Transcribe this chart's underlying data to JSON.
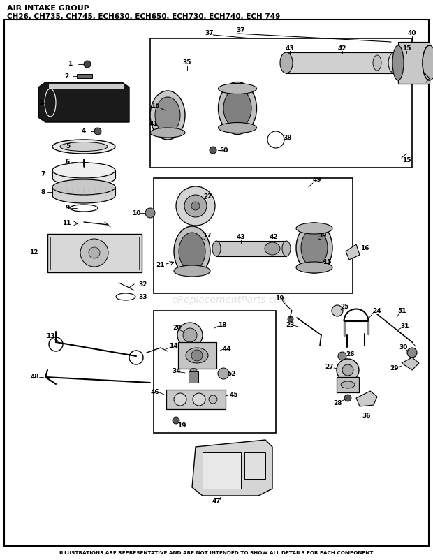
{
  "title_line1": "AIR INTAKE GROUP",
  "title_line2": "CH26, CH735, CH745, ECH630, ECH650, ECH730, ECH740, ECH 749",
  "footer": "ILLUSTRATIONS ARE REPRESENTATIVE AND ARE NOT INTENDED TO SHOW ALL DETAILS FOR EACH COMPONENT",
  "watermark": "eReplacementParts.com",
  "bg_color": "#ffffff",
  "figsize": [
    6.2,
    8.02
  ],
  "dpi": 100
}
